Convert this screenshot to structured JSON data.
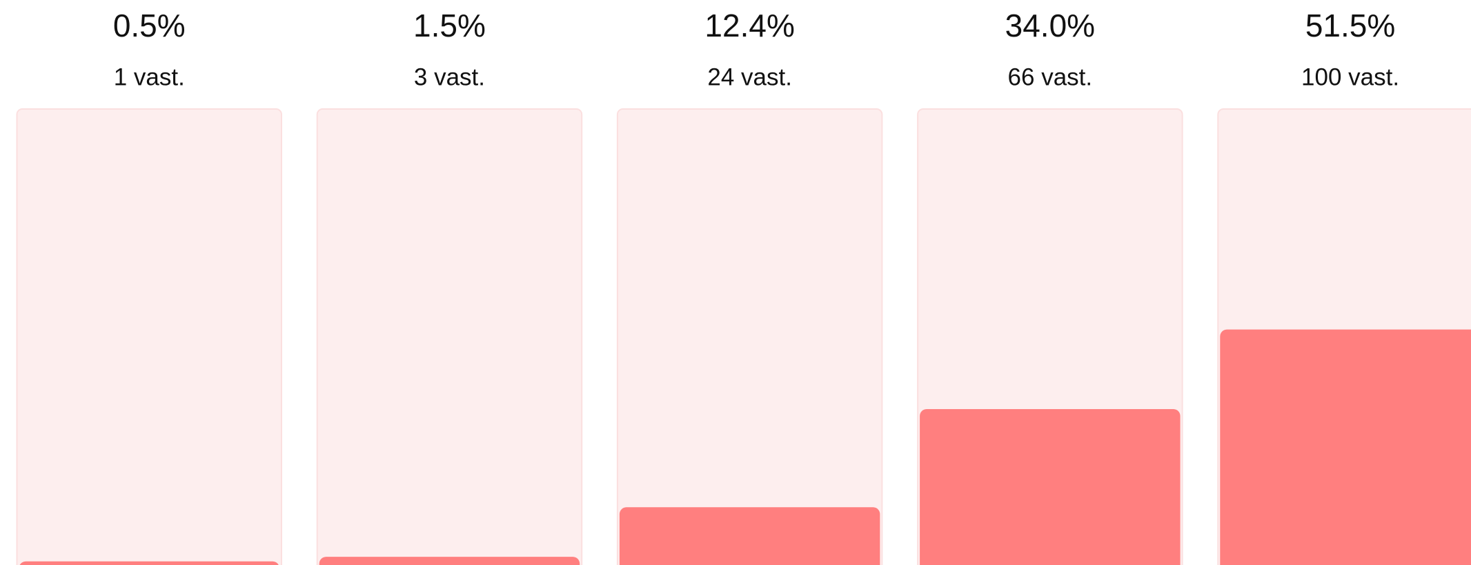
{
  "chart_data": {
    "type": "bar",
    "values": [
      0.5,
      1.5,
      12.4,
      34.0,
      51.5
    ],
    "value_labels": [
      "0.5%",
      "1.5%",
      "12.4%",
      "34.0%",
      "51.5%"
    ],
    "count_labels": [
      "1 vast.",
      "3 vast.",
      "24 vast.",
      "66 vast.",
      "100 vast."
    ],
    "color": "#ff7f7f",
    "ylim": [
      0,
      100
    ]
  }
}
